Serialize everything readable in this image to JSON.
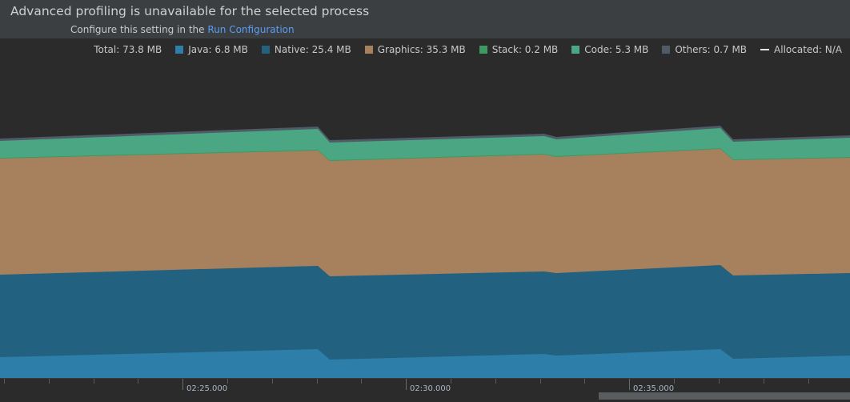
{
  "banner": {
    "title": "Advanced profiling is unavailable for the selected process",
    "subtitle_prefix": "Configure this setting in the",
    "subtitle_link": "Run Configuration"
  },
  "legend": {
    "total": "Total: 73.8 MB",
    "items": [
      {
        "label": "Java: 6.8 MB",
        "color": "#2d7ea8"
      },
      {
        "label": "Native: 25.4 MB",
        "color": "#22617f"
      },
      {
        "label": "Graphics: 35.3 MB",
        "color": "#a7805d"
      },
      {
        "label": "Stack: 0.2 MB",
        "color": "#3c9a5f"
      },
      {
        "label": "Code: 5.3 MB",
        "color": "#4ba783"
      },
      {
        "label": "Others: 0.7 MB",
        "color": "#4f5b66"
      }
    ],
    "allocated": "Allocated: N/A"
  },
  "axis": {
    "labels": [
      "02:25.000",
      "02:30.000",
      "02:35.000"
    ]
  }
}
